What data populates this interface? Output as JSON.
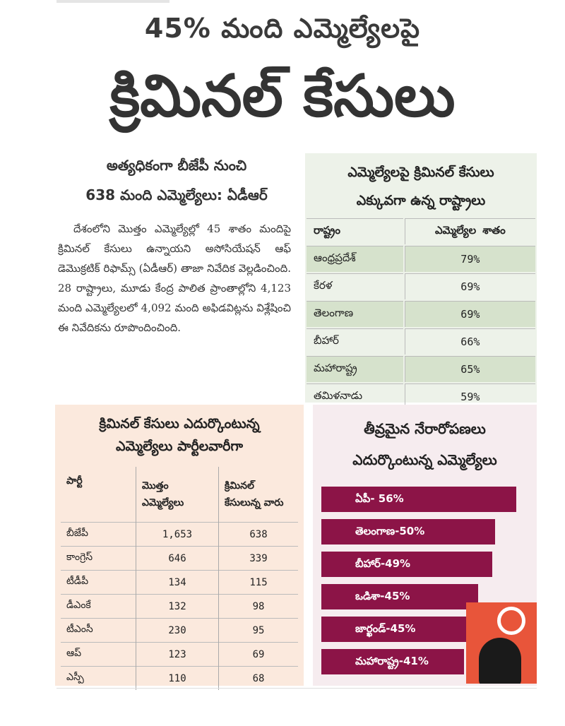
{
  "headline": {
    "line1": "45% మంది ఎమ్మెల్యేలపై",
    "line2": "క్రిమినల్ కేసులు"
  },
  "article": {
    "heading_line1": "అత్యధికంగా బీజేపీ నుంచి",
    "heading_line2": "638 మంది ఎమ్మెల్యేలు: ఏడీఆర్",
    "body": "దేశంలోని మొత్తం ఎమ్మెల్యేల్లో 45 శాతం మందిపై క్రిమినల్ కేసులు ఉన్నాయని అసోసియేషన్ ఆఫ్ డెమొక్రటిక్ రిఫామ్స్ (ఏడీఆర్) తాజా నివేదిక వెల్లడించింది. 28 రాష్ట్రాలు, మూడు కేంద్ర పాలిత ప్రాంతాల్లోని 4,123 మంది ఎమ్మెల్యేలలో 4,092 మంది అఫిడవిట్లను విశ్లేషించి ఈ నివేదికను రూపొందించింది."
  },
  "states_box": {
    "heading_line1": "ఎమ్మెల్యేలపై క్రిమినల్ కేసులు",
    "heading_line2": "ఎక్కువగా ఉన్న రాష్ట్రాలు",
    "col_state": "రాష్ట్రం",
    "col_percent": "ఎమ్మెల్యేల శాతం",
    "rows": [
      {
        "state": "ఆంధ్రప్రదేశ్",
        "percent": "79%"
      },
      {
        "state": "కేరళ",
        "percent": "69%"
      },
      {
        "state": "తెలంగాణ",
        "percent": "69%"
      },
      {
        "state": "బీహార్",
        "percent": "66%"
      },
      {
        "state": "మహారాష్ట్ర",
        "percent": "65%"
      },
      {
        "state": "తమిళనాడు",
        "percent": "59%"
      }
    ],
    "colors": {
      "bg": "#edf2e9",
      "stripe": "#d6e2cc"
    }
  },
  "party_box": {
    "heading_line1": "క్రిమినల్ కేసులు ఎదుర్కొంటున్న",
    "heading_line2": "ఎమ్మెల్యేలు పార్టీలవారీగా",
    "col_party": "పార్టీ",
    "col_total": "మొత్తం ఎమ్మెల్యేలు",
    "col_criminal": "క్రిమినల్ కేసులున్న వారు",
    "rows": [
      {
        "party": "బీజేపీ",
        "total": "1,653",
        "criminal": "638"
      },
      {
        "party": "కాంగ్రెస్",
        "total": "646",
        "criminal": "339"
      },
      {
        "party": "టీడీపీ",
        "total": "134",
        "criminal": "115"
      },
      {
        "party": "డీఎంకే",
        "total": "132",
        "criminal": "98"
      },
      {
        "party": "టీఎంసీ",
        "total": "230",
        "criminal": "95"
      },
      {
        "party": "ఆప్",
        "total": "123",
        "criminal": "69"
      },
      {
        "party": "ఎస్పీ",
        "total": "110",
        "criminal": "68"
      }
    ],
    "colors": {
      "bg": "#fbe9dd"
    }
  },
  "crimes_box": {
    "heading_line1": "తీవ్రమైన నేరారోపణలు",
    "heading_line2": "ఎదుర్కొంటున్న ఎమ్మెల్యేలు",
    "colors": {
      "bg": "#f6ecef",
      "bar": "#8c1447",
      "badge": "#e8553a"
    }
  },
  "chart_data": {
    "type": "bar",
    "categories": [
      "ఏపీ",
      "తెలంగాణ",
      "బీహార్",
      "ఒడిశా",
      "జార్ఖండ్",
      "మహారాష్ట్ర"
    ],
    "values": [
      56,
      50,
      49,
      45,
      45,
      41
    ],
    "labels": [
      "ఏపీ- 56%",
      "తెలంగాణ-50%",
      "బీహార్-49%",
      "ఒడిశా-45%",
      "జార్ఖండ్-45%",
      "మహారాష్ట్ర-41%"
    ],
    "orientation": "horizontal"
  }
}
